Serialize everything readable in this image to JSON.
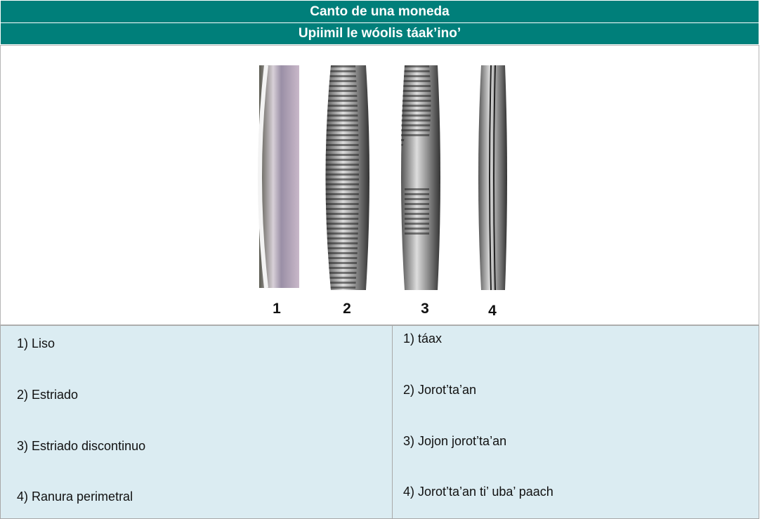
{
  "header": {
    "title": "Canto de una moneda",
    "subtitle": "Upiimil le wóolis táak’ino’"
  },
  "figure": {
    "labels": [
      "1",
      "2",
      "3",
      "4"
    ]
  },
  "table": {
    "columns": [
      [
        "1) Liso",
        "2) Estriado",
        "3) Estriado discontinuo",
        "4) Ranura perimetral"
      ],
      [
        "1) táax",
        "2) Jorot’ta’an",
        "3) Jojon jorot’ta’an",
        "4) Jorot’ta’an ti’ uba’ paach"
      ]
    ]
  }
}
